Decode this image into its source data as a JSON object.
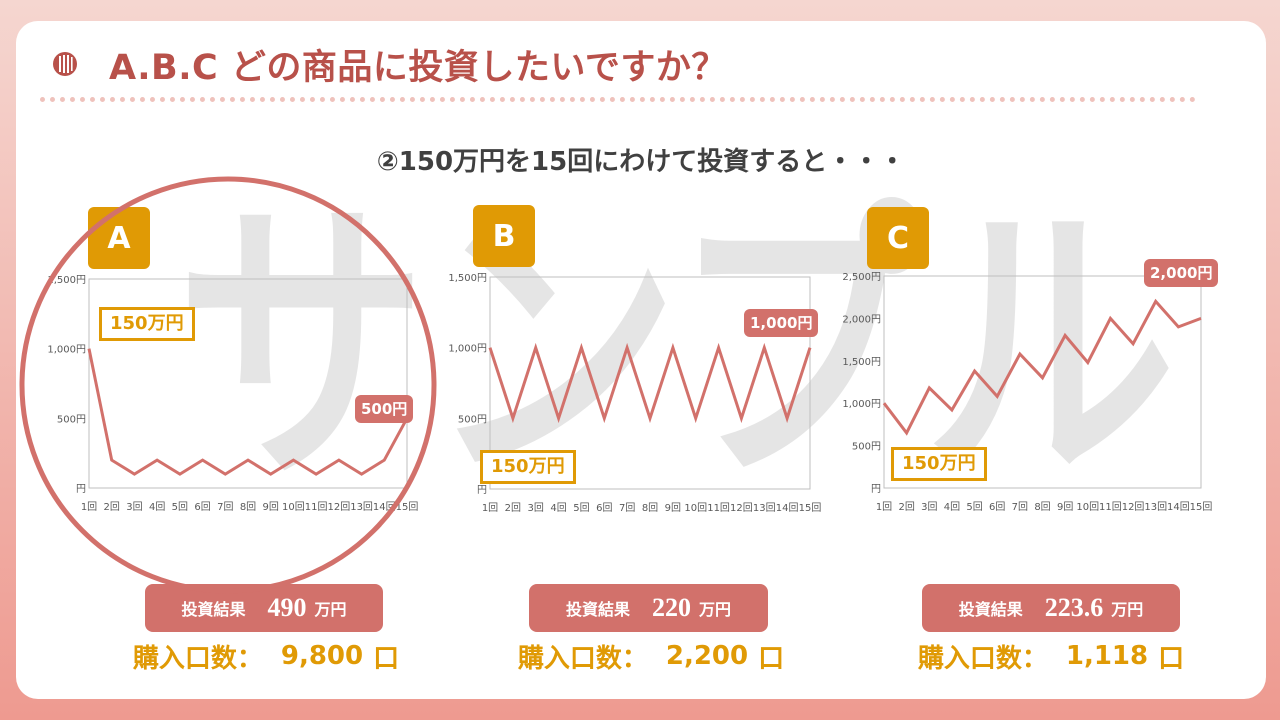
{
  "header": {
    "title": "A.B.C どの商品に投資したいですか？",
    "subtitle": "②150万円を15回にわけて投資すると・・・"
  },
  "watermark": {
    "text": "サンプル"
  },
  "x_ticks": [
    "1回",
    "2回",
    "3回",
    "4回",
    "5回",
    "6回",
    "7回",
    "8回",
    "9回",
    "10回",
    "11回",
    "12回",
    "13回",
    "14回",
    "15回"
  ],
  "panels": [
    {
      "label": "A",
      "investment_label": "150万円",
      "callout": "500円",
      "result_label": "投資結果",
      "result_value": "490",
      "result_unit": "万円",
      "count_label": "購入口数：",
      "count_value": "9,800",
      "count_unit": "口"
    },
    {
      "label": "B",
      "investment_label": "150万円",
      "callout": "1,000円",
      "result_label": "投資結果",
      "result_value": "220",
      "result_unit": "万円",
      "count_label": "購入口数：",
      "count_value": "2,200",
      "count_unit": "口"
    },
    {
      "label": "C",
      "investment_label": "150万円",
      "callout": "2,000円",
      "result_label": "投資結果",
      "result_value": "223.6",
      "result_unit": "万円",
      "count_label": "購入口数：",
      "count_value": "1,118",
      "count_unit": "口"
    }
  ],
  "colors": {
    "title": "#b8514a",
    "accent": "#e09a05",
    "line": "#d2716b",
    "circle": "#d2716b",
    "watermark": "#e2e2e2"
  },
  "chart_data": [
    {
      "type": "line",
      "name": "A",
      "x": [
        "1回",
        "2回",
        "3回",
        "4回",
        "5回",
        "6回",
        "7回",
        "8回",
        "9回",
        "10回",
        "11回",
        "12回",
        "13回",
        "14回",
        "15回"
      ],
      "y": [
        1000,
        200,
        100,
        200,
        100,
        200,
        100,
        200,
        100,
        200,
        100,
        200,
        100,
        200,
        500
      ],
      "yticks": [
        0,
        500,
        1000,
        1500
      ],
      "ytick_labels": [
        "円",
        "500円",
        "1,000円",
        "1,500円"
      ],
      "ylim": [
        0,
        1500
      ]
    },
    {
      "type": "line",
      "name": "B",
      "x": [
        "1回",
        "2回",
        "3回",
        "4回",
        "5回",
        "6回",
        "7回",
        "8回",
        "9回",
        "10回",
        "11回",
        "12回",
        "13回",
        "14回",
        "15回"
      ],
      "y": [
        1000,
        500,
        1000,
        500,
        1000,
        500,
        1000,
        500,
        1000,
        500,
        1000,
        500,
        1000,
        500,
        1000
      ],
      "yticks": [
        0,
        500,
        1000,
        1500
      ],
      "ytick_labels": [
        "円",
        "500円",
        "1,000円",
        "1,500円"
      ],
      "ylim": [
        0,
        1500
      ]
    },
    {
      "type": "line",
      "name": "C",
      "x": [
        "1回",
        "2回",
        "3回",
        "4回",
        "5回",
        "6回",
        "7回",
        "8回",
        "9回",
        "10回",
        "11回",
        "12回",
        "13回",
        "14回",
        "15回"
      ],
      "y": [
        1000,
        650,
        1180,
        920,
        1380,
        1080,
        1580,
        1300,
        1800,
        1480,
        2000,
        1700,
        2200,
        1900,
        2000
      ],
      "yticks": [
        0,
        500,
        1000,
        1500,
        2000,
        2500
      ],
      "ytick_labels": [
        "円",
        "500円",
        "1,000円",
        "1,500円",
        "2,000円",
        "2,500円"
      ],
      "ylim": [
        0,
        2500
      ]
    }
  ]
}
